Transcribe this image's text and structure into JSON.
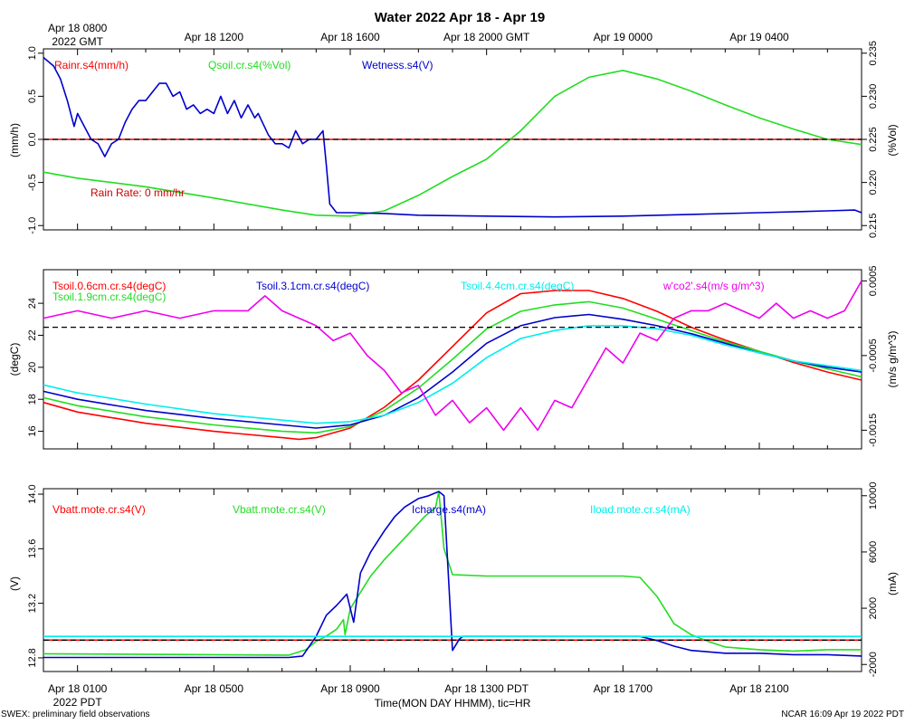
{
  "title": "Water 2022 Apr 18 - Apr 19",
  "top_axis": {
    "ticks": [
      {
        "x": 0,
        "label": "Apr 18 0800",
        "label2": "2022 GMT"
      },
      {
        "x": 4,
        "label": "Apr 18 1200"
      },
      {
        "x": 8,
        "label": "Apr 18 1600"
      },
      {
        "x": 12,
        "label": "Apr 18 2000 GMT"
      },
      {
        "x": 16,
        "label": "Apr 19 0000"
      },
      {
        "x": 20,
        "label": "Apr 19 0400"
      }
    ]
  },
  "bottom_axis": {
    "ticks": [
      {
        "x": 0,
        "label": "Apr 18 0100",
        "label2": "2022 PDT"
      },
      {
        "x": 4,
        "label": "Apr 18 0500"
      },
      {
        "x": 8,
        "label": "Apr 18 0900"
      },
      {
        "x": 12,
        "label": "Apr 18 1300 PDT"
      },
      {
        "x": 16,
        "label": "Apr 18 1700"
      },
      {
        "x": 20,
        "label": "Apr 18 2100"
      }
    ],
    "xlabel": "Time(MON DAY HHMM), tic=HR"
  },
  "footer": {
    "left": "SWEX: preliminary field observations",
    "right": "NCAR 16:09 Apr 19 2022 PDT"
  },
  "colors": {
    "red": "#ff0000",
    "green": "#22dd22",
    "blue": "#0000cc",
    "cyan": "#00eeee",
    "magenta": "#ee00ee",
    "annotation": "#cc0000"
  },
  "chart_data": [
    {
      "type": "line",
      "panel": "water",
      "ylabel": "(mm/h)",
      "ylim": [
        -1.05,
        1.05
      ],
      "yticks": [
        "1.0",
        "0.5",
        "0.0",
        "-0.5",
        "-1.0"
      ],
      "y2label": "(%Vol)",
      "y2lim": [
        0.2145,
        0.2355
      ],
      "y2ticks": [
        "0.235",
        "0.230",
        "0.225",
        "0.220",
        "0.215"
      ],
      "xlim": [
        -1,
        23
      ],
      "hline": 0.0,
      "annotation": "Rain Rate: 0 mm/hr",
      "series": [
        {
          "name": "Rainr.s4(mm/h)",
          "axis": "left",
          "color": "red",
          "x": [
            -1,
            23
          ],
          "y": [
            0,
            0
          ]
        },
        {
          "name": "Qsoil.cr.s4(%Vol)",
          "axis": "right",
          "color": "green",
          "x": [
            -1,
            0,
            2,
            4,
            6,
            7,
            8,
            9,
            10,
            11,
            12,
            13,
            14,
            15,
            16,
            17,
            18,
            19,
            20,
            21,
            22,
            23
          ],
          "y": [
            0.2212,
            0.2205,
            0.2195,
            0.2182,
            0.2168,
            0.2162,
            0.2161,
            0.2167,
            0.2185,
            0.2207,
            0.2227,
            0.226,
            0.23,
            0.2322,
            0.233,
            0.232,
            0.2306,
            0.229,
            0.2275,
            0.2262,
            0.225,
            0.2244
          ]
        },
        {
          "name": "Wetness.s4(V)",
          "axis": "left",
          "color": "blue",
          "x": [
            -1,
            -0.7,
            -0.5,
            -0.3,
            -0.1,
            0.0,
            0.2,
            0.4,
            0.6,
            0.8,
            1.0,
            1.2,
            1.4,
            1.6,
            1.8,
            2.0,
            2.2,
            2.4,
            2.6,
            2.8,
            3.0,
            3.2,
            3.4,
            3.6,
            3.8,
            4.0,
            4.2,
            4.4,
            4.6,
            4.8,
            5.0,
            5.2,
            5.3,
            5.6,
            5.8,
            6.0,
            6.2,
            6.4,
            6.6,
            6.8,
            7.0,
            7.2,
            7.3,
            7.4,
            7.6,
            7.8,
            8.0,
            9,
            10,
            12,
            14,
            16,
            18,
            20,
            22,
            22.8,
            23
          ],
          "y": [
            0.95,
            0.85,
            0.7,
            0.45,
            0.15,
            0.3,
            0.15,
            0.0,
            -0.05,
            -0.2,
            -0.05,
            0.0,
            0.2,
            0.35,
            0.45,
            0.45,
            0.55,
            0.65,
            0.65,
            0.5,
            0.55,
            0.35,
            0.4,
            0.3,
            0.35,
            0.3,
            0.5,
            0.3,
            0.45,
            0.25,
            0.4,
            0.25,
            0.3,
            0.05,
            -0.05,
            -0.05,
            -0.1,
            0.1,
            -0.05,
            0.0,
            0.0,
            0.1,
            -0.3,
            -0.75,
            -0.85,
            -0.85,
            -0.85,
            -0.86,
            -0.88,
            -0.89,
            -0.9,
            -0.89,
            -0.87,
            -0.85,
            -0.83,
            -0.82,
            -0.85
          ]
        }
      ]
    },
    {
      "type": "line",
      "panel": "soil-temperature",
      "ylabel": "(degC)",
      "ylim": [
        14.9,
        26.1
      ],
      "yticks": [
        "24",
        "22",
        "20",
        "18",
        "16"
      ],
      "y2label": "(m/s g/m^3)",
      "y2lim": [
        -0.00175,
        0.00065
      ],
      "y2ticks": [
        "0.0005",
        "-0.0005",
        "-0.0015"
      ],
      "xlim": [
        -1,
        23
      ],
      "hline": 22.5,
      "series": [
        {
          "name": "Tsoil.0.6cm.cr.s4(degC)",
          "axis": "left",
          "color": "red",
          "x": [
            -1,
            0,
            2,
            4,
            6,
            6.5,
            7,
            8,
            9,
            10,
            11,
            12,
            13,
            13.5,
            14,
            15,
            16,
            17,
            18,
            19,
            20,
            21,
            22,
            23
          ],
          "y": [
            17.8,
            17.2,
            16.5,
            16.0,
            15.6,
            15.5,
            15.6,
            16.2,
            17.5,
            19.2,
            21.3,
            23.4,
            24.6,
            24.7,
            24.8,
            24.8,
            24.3,
            23.5,
            22.5,
            21.7,
            21.0,
            20.3,
            19.7,
            19.2
          ]
        },
        {
          "name": "Tsoil.1.9cm.cr.s4(degC)",
          "axis": "left",
          "color": "green",
          "x": [
            -1,
            0,
            2,
            4,
            6,
            7,
            8,
            9,
            10,
            11,
            12,
            13,
            14,
            15,
            16,
            17,
            18,
            19,
            20,
            21,
            22,
            23
          ],
          "y": [
            18.1,
            17.6,
            16.9,
            16.4,
            16.0,
            15.9,
            16.3,
            17.3,
            18.7,
            20.5,
            22.4,
            23.5,
            23.9,
            24.1,
            23.7,
            23.0,
            22.3,
            21.6,
            21.0,
            20.4,
            19.9,
            19.4
          ]
        },
        {
          "name": "Tsoil.3.1cm.cr.s4(degC)",
          "axis": "left",
          "color": "blue",
          "x": [
            -1,
            0,
            2,
            4,
            6,
            7,
            8,
            9,
            10,
            11,
            12,
            13,
            14,
            15,
            16,
            17,
            18,
            19,
            20,
            21,
            22,
            23
          ],
          "y": [
            18.5,
            18.0,
            17.3,
            16.8,
            16.4,
            16.2,
            16.4,
            17.0,
            18.1,
            19.7,
            21.5,
            22.6,
            23.1,
            23.3,
            23.0,
            22.6,
            22.1,
            21.5,
            20.9,
            20.4,
            20.0,
            19.7
          ]
        },
        {
          "name": "Tsoil.4.4cm.cr.s4(degC)",
          "axis": "left",
          "color": "cyan",
          "x": [
            -1,
            0,
            2,
            4,
            6,
            7,
            8,
            9,
            10,
            11,
            12,
            13,
            14,
            15,
            16,
            17,
            18,
            19,
            20,
            21,
            22,
            23
          ],
          "y": [
            18.9,
            18.4,
            17.7,
            17.1,
            16.7,
            16.5,
            16.6,
            17.0,
            17.8,
            19.0,
            20.6,
            21.8,
            22.3,
            22.6,
            22.6,
            22.4,
            22.0,
            21.4,
            20.9,
            20.4,
            20.1,
            19.8
          ]
        },
        {
          "name": "w'co2'.s4(m/s g/m^3)",
          "axis": "right",
          "color": "magenta",
          "x": [
            -1,
            0,
            1,
            2,
            3,
            4,
            5,
            5.5,
            6,
            6.5,
            7,
            7.5,
            8,
            8.5,
            9,
            9.5,
            10,
            10.5,
            11,
            11.5,
            12,
            12.5,
            13,
            13.5,
            14,
            14.5,
            15,
            15.5,
            16,
            16.5,
            17,
            17.5,
            18,
            18.5,
            19,
            19.5,
            20,
            20.5,
            21,
            21.5,
            22,
            22.5,
            23
          ],
          "y": [
            0.0,
            0.0001,
            0.0,
            0.0001,
            0.0,
            0.0001,
            0.0001,
            0.0003,
            0.0001,
            0.0,
            -0.0001,
            -0.0003,
            -0.0002,
            -0.0005,
            -0.0007,
            -0.001,
            -0.0009,
            -0.0013,
            -0.0011,
            -0.0014,
            -0.0012,
            -0.0015,
            -0.0012,
            -0.0015,
            -0.0011,
            -0.0012,
            -0.0008,
            -0.0004,
            -0.0006,
            -0.0002,
            -0.0003,
            0.0,
            0.0001,
            0.0001,
            0.0002,
            0.0001,
            0.0,
            0.0002,
            0.0,
            0.0001,
            0.0,
            0.0001,
            0.0005
          ]
        }
      ]
    },
    {
      "type": "line",
      "panel": "mote-power",
      "ylabel": "(V)",
      "ylim": [
        12.7,
        14.04
      ],
      "yticks": [
        "14.0",
        "13.6",
        "13.2",
        "12.8"
      ],
      "y2label": "(mA)",
      "y2lim": [
        -2500,
        10500
      ],
      "y2ticks": [
        "10000",
        "6000",
        "2000",
        "-2000"
      ],
      "xlim": [
        -1,
        23
      ],
      "hline": 12.93,
      "series": [
        {
          "name": "Vbatt.mote.cr.s4(V)",
          "axis": "left",
          "color": "red",
          "x": [
            -1,
            23
          ],
          "y": [
            12.93,
            12.93
          ]
        },
        {
          "name": "Vbatt.mote.cr.s4(V)",
          "axis": "left",
          "color": "green",
          "x": [
            -1,
            6.2,
            6.7,
            7.0,
            7.3,
            7.6,
            7.8,
            7.85,
            8.0,
            8.3,
            8.6,
            9.0,
            9.3,
            9.6,
            9.9,
            10.2,
            10.5,
            10.6,
            10.75,
            11.0,
            12,
            13,
            14,
            15,
            16,
            16.5,
            17,
            17.5,
            18,
            18.5,
            19,
            20,
            21,
            22,
            23
          ],
          "y": [
            12.83,
            12.82,
            12.86,
            12.92,
            12.96,
            13.01,
            13.08,
            12.97,
            13.16,
            13.28,
            13.4,
            13.52,
            13.6,
            13.68,
            13.76,
            13.84,
            13.9,
            14.02,
            13.6,
            13.41,
            13.4,
            13.4,
            13.4,
            13.4,
            13.4,
            13.39,
            13.25,
            13.05,
            12.97,
            12.92,
            12.88,
            12.86,
            12.85,
            12.86,
            12.86
          ]
        },
        {
          "name": "Icharge.s4(mA)",
          "axis": "right",
          "color": "blue",
          "x": [
            -1,
            6.2,
            6.6,
            7.0,
            7.3,
            7.6,
            7.9,
            8.1,
            8.3,
            8.6,
            9.0,
            9.3,
            9.6,
            10.0,
            10.3,
            10.6,
            10.75,
            11.0,
            11.2,
            11.3,
            12,
            15,
            16.5,
            17,
            17.5,
            18,
            19,
            20,
            21,
            22,
            23
          ],
          "y": [
            -1500,
            -1500,
            -1400,
            0,
            1500,
            2200,
            3000,
            1000,
            4500,
            6000,
            7500,
            8500,
            9200,
            9800,
            10000,
            10300,
            10000,
            -1000,
            -200,
            0,
            0,
            0,
            0,
            -300,
            -700,
            -1000,
            -1200,
            -1200,
            -1300,
            -1300,
            -1400
          ]
        },
        {
          "name": "Iload.mote.cr.s4(mA)",
          "axis": "right",
          "color": "cyan",
          "x": [
            -1,
            23
          ],
          "y": [
            0,
            0
          ]
        }
      ]
    }
  ]
}
